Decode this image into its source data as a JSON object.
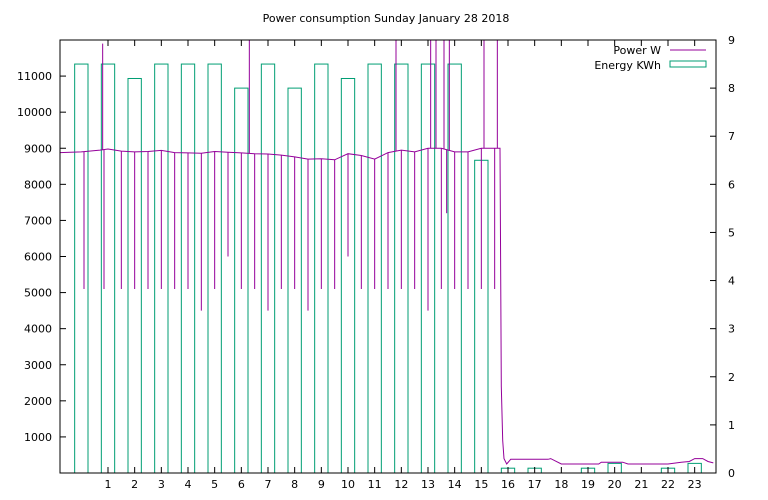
{
  "chart_data": {
    "type": "bar+line",
    "title": "Power consumption Sunday January 28 2018",
    "xlabel": "",
    "ylabel_left": "",
    "ylabel_right": "",
    "xlim": [
      -0.8,
      23.8
    ],
    "ylim_left": [
      0,
      12000
    ],
    "ylim_right": [
      0,
      9
    ],
    "x_ticks": [
      1,
      2,
      3,
      4,
      5,
      6,
      7,
      8,
      9,
      10,
      11,
      12,
      13,
      14,
      15,
      16,
      17,
      18,
      19,
      20,
      21,
      22,
      23
    ],
    "y_left_ticks": [
      1000,
      2000,
      3000,
      4000,
      5000,
      6000,
      7000,
      8000,
      9000,
      10000,
      11000
    ],
    "y_right_ticks": [
      0,
      1,
      2,
      3,
      4,
      5,
      6,
      7,
      8,
      9
    ],
    "grid": false,
    "legend": {
      "position": "top-right",
      "entries": [
        {
          "name": "Power W",
          "color": "#94009a",
          "style": "line"
        },
        {
          "name": "Energy KWh",
          "color": "#009e73",
          "style": "box"
        }
      ]
    },
    "energy_kwh": {
      "name": "Energy KWh",
      "axis": "right",
      "color": "#009e73",
      "bar_width": 0.5,
      "x": [
        0,
        1,
        2,
        3,
        4,
        5,
        6,
        7,
        8,
        9,
        10,
        11,
        12,
        13,
        14,
        15,
        16,
        17,
        18,
        19,
        20,
        21,
        22,
        23
      ],
      "values": [
        8.5,
        8.5,
        8.2,
        8.5,
        8.5,
        8.5,
        8.0,
        8.5,
        8.0,
        8.5,
        8.2,
        8.5,
        8.5,
        8.5,
        8.5,
        6.5,
        0.1,
        0.1,
        0,
        0.1,
        0.2,
        0,
        0.1,
        0.2
      ]
    },
    "power_w": {
      "name": "Power W",
      "axis": "left",
      "color": "#94009a",
      "x": [
        -0.8,
        0.0,
        0.7,
        1.0,
        1.5,
        2.0,
        2.5,
        3.0,
        3.5,
        4.0,
        4.5,
        5.0,
        5.5,
        6.0,
        6.5,
        7.0,
        7.5,
        8.0,
        8.5,
        9.0,
        9.5,
        10.0,
        10.5,
        11.0,
        11.5,
        12.0,
        12.5,
        13.0,
        13.5,
        14.0,
        14.5,
        15.0,
        15.5,
        15.7,
        15.75,
        15.8,
        15.85,
        15.95,
        16.1,
        16.5,
        17.0,
        17.5,
        17.6,
        18.0,
        19.0,
        19.4,
        19.5,
        20.0,
        20.3,
        20.5,
        21.0,
        21.5,
        22.0,
        22.5,
        22.8,
        23.0,
        23.3,
        23.5,
        23.7
      ],
      "values": [
        8880,
        8900,
        8950,
        8980,
        8920,
        8900,
        8910,
        8940,
        8880,
        8870,
        8860,
        8910,
        8890,
        8870,
        8850,
        8840,
        8810,
        8760,
        8700,
        8710,
        8680,
        8850,
        8800,
        8700,
        8880,
        8950,
        8900,
        9000,
        9000,
        8900,
        8900,
        9000,
        9000,
        9000,
        2400,
        900,
        400,
        250,
        380,
        380,
        380,
        380,
        400,
        250,
        250,
        250,
        300,
        300,
        300,
        250,
        250,
        250,
        250,
        300,
        320,
        400,
        400,
        320,
        280
      ],
      "spikes": [
        {
          "x": 0.1,
          "value": 5100
        },
        {
          "x": 0.8,
          "value": 11900
        },
        {
          "x": 0.85,
          "value": 5100
        },
        {
          "x": 1.5,
          "value": 5100
        },
        {
          "x": 2.0,
          "value": 5100
        },
        {
          "x": 2.5,
          "value": 5100
        },
        {
          "x": 3.0,
          "value": 5100
        },
        {
          "x": 3.5,
          "value": 5100
        },
        {
          "x": 4.0,
          "value": 5100
        },
        {
          "x": 4.5,
          "value": 4500
        },
        {
          "x": 5.0,
          "value": 5100
        },
        {
          "x": 5.5,
          "value": 6000
        },
        {
          "x": 6.0,
          "value": 5100
        },
        {
          "x": 6.3,
          "value": 12000
        },
        {
          "x": 6.5,
          "value": 5100
        },
        {
          "x": 7.0,
          "value": 4500
        },
        {
          "x": 7.5,
          "value": 5100
        },
        {
          "x": 8.0,
          "value": 5100
        },
        {
          "x": 8.5,
          "value": 4500
        },
        {
          "x": 9.0,
          "value": 5100
        },
        {
          "x": 9.5,
          "value": 5100
        },
        {
          "x": 10.0,
          "value": 6000
        },
        {
          "x": 10.5,
          "value": 5100
        },
        {
          "x": 11.0,
          "value": 5100
        },
        {
          "x": 11.5,
          "value": 5100
        },
        {
          "x": 11.8,
          "value": 12000
        },
        {
          "x": 12.0,
          "value": 5100
        },
        {
          "x": 12.5,
          "value": 5100
        },
        {
          "x": 13.0,
          "value": 4500
        },
        {
          "x": 13.1,
          "value": 12000
        },
        {
          "x": 13.3,
          "value": 12000
        },
        {
          "x": 13.5,
          "value": 5100
        },
        {
          "x": 13.6,
          "value": 12000
        },
        {
          "x": 13.7,
          "value": 7200
        },
        {
          "x": 13.8,
          "value": 12000
        },
        {
          "x": 14.0,
          "value": 5100
        },
        {
          "x": 14.5,
          "value": 5100
        },
        {
          "x": 15.0,
          "value": 5100
        },
        {
          "x": 15.1,
          "value": 12000
        },
        {
          "x": 15.5,
          "value": 5100
        },
        {
          "x": 15.6,
          "value": 12000
        }
      ]
    }
  }
}
